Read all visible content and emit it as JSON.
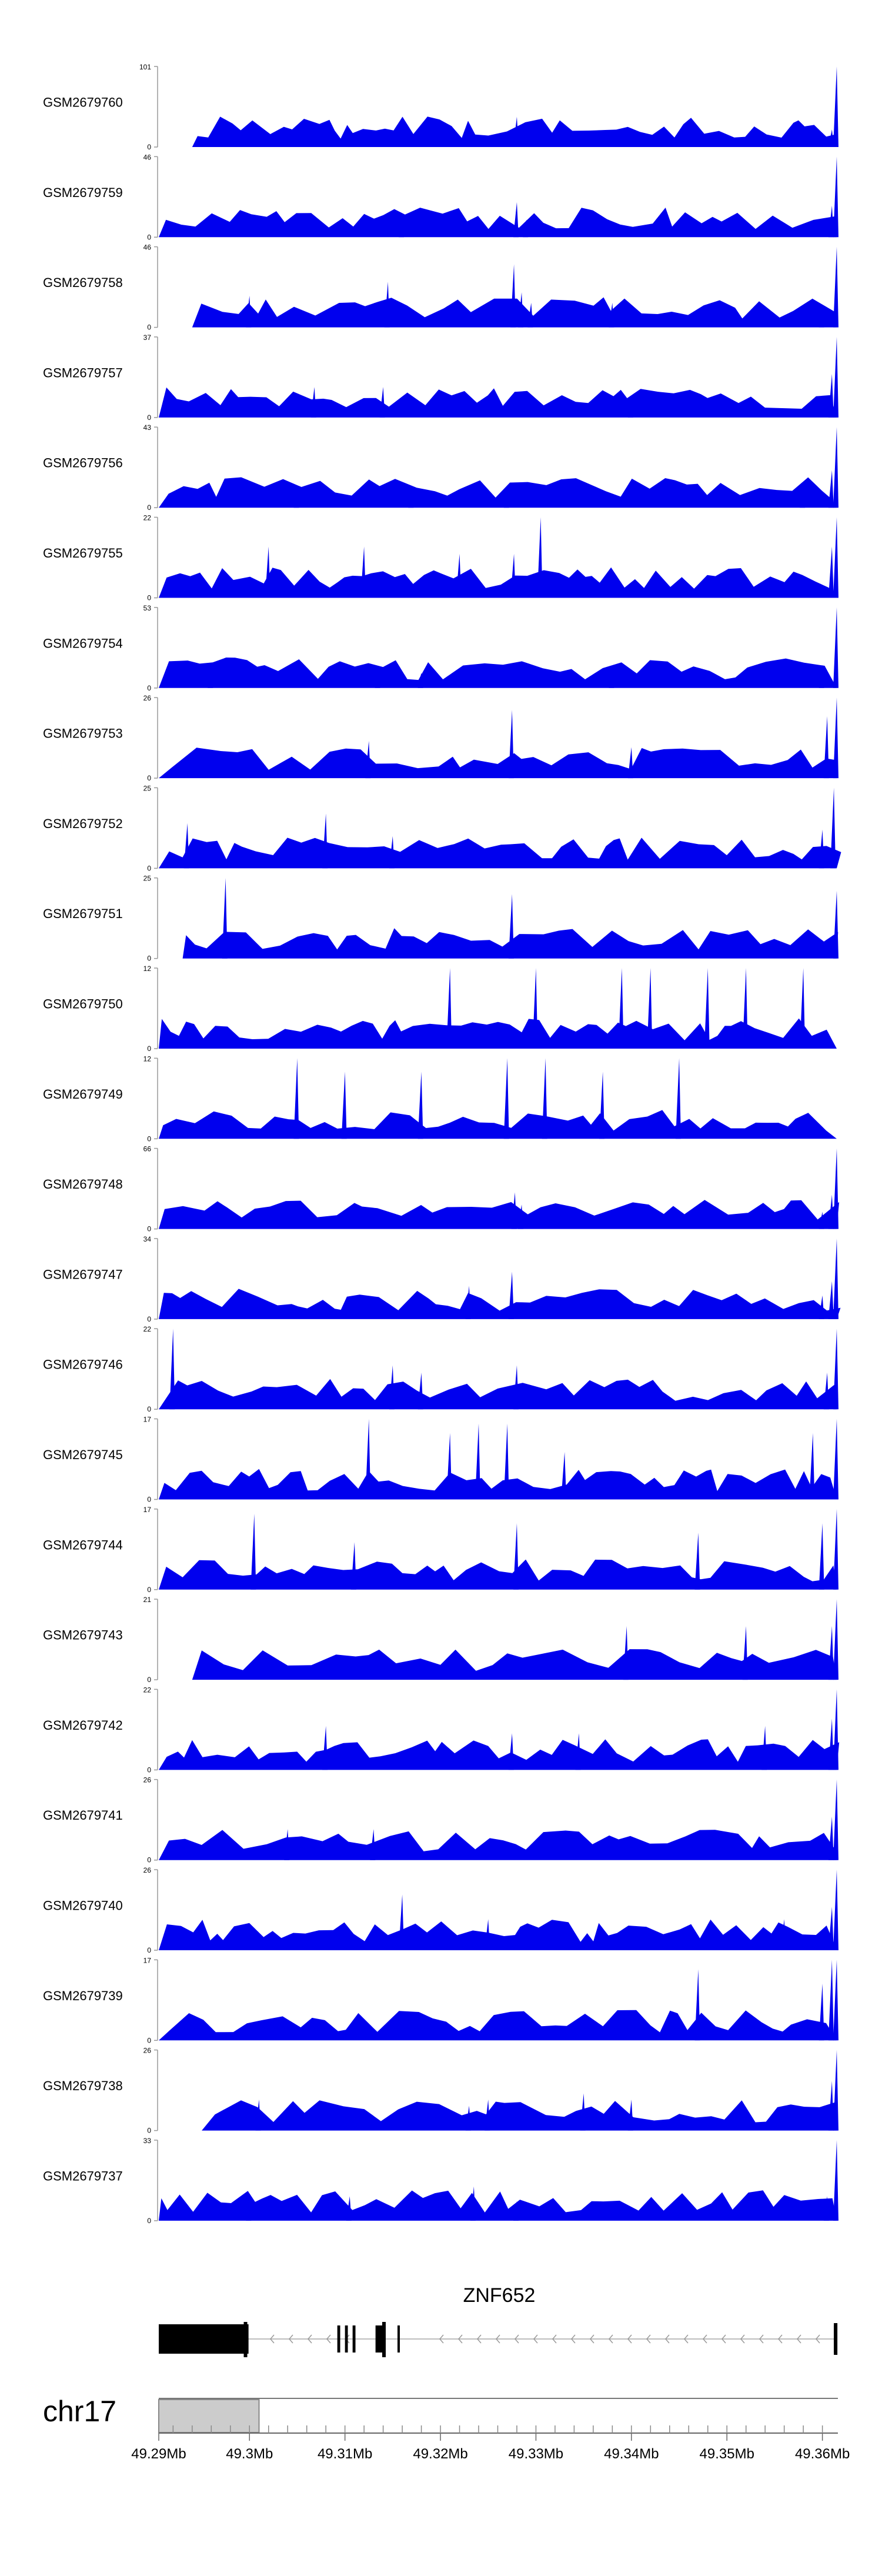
{
  "chart_data": {
    "type": "area",
    "chromosome": "chr17",
    "gene": {
      "name": "ZNF652",
      "strand": "-",
      "start": 49.2905,
      "end": 49.3615,
      "exons": [
        {
          "start": 49.2905,
          "end": 49.2999
        },
        {
          "start": 49.3092,
          "end": 49.3095
        },
        {
          "start": 49.31,
          "end": 49.3103
        },
        {
          "start": 49.3108,
          "end": 49.3111
        },
        {
          "start": 49.3132,
          "end": 49.3142
        },
        {
          "start": 49.3155,
          "end": 49.3157
        },
        {
          "start": 49.3612,
          "end": 49.3615
        }
      ]
    },
    "x_axis": {
      "range": [
        49.2905,
        49.3615
      ],
      "tick_labels": [
        {
          "value": 49.29,
          "label": "49.29Mb"
        },
        {
          "value": 49.3,
          "label": "49.3Mb"
        },
        {
          "value": 49.31,
          "label": "49.31Mb"
        },
        {
          "value": 49.32,
          "label": "49.32Mb"
        },
        {
          "value": 49.33,
          "label": "49.33Mb"
        },
        {
          "value": 49.34,
          "label": "49.34Mb"
        },
        {
          "value": 49.35,
          "label": "49.35Mb"
        },
        {
          "value": 49.36,
          "label": "49.36Mb"
        }
      ],
      "ideogram_highlight": [
        49.2905,
        49.301
      ]
    },
    "tracks": [
      {
        "name": "GSM2679760",
        "ymin": 0,
        "ymax": 101,
        "data_start": 49.294,
        "peaks": [
          [
            49.3153,
            16
          ],
          [
            49.3145,
            10
          ],
          [
            49.328,
            38
          ],
          [
            49.33,
            12
          ],
          [
            49.3615,
            101
          ],
          [
            49.361,
            22
          ],
          [
            49.36,
            14
          ]
        ]
      },
      {
        "name": "GSM2679759",
        "ymin": 0,
        "ymax": 46,
        "data_start": 49.2905,
        "peaks": [
          [
            49.328,
            20
          ],
          [
            49.329,
            10
          ],
          [
            49.361,
            18
          ],
          [
            49.3615,
            46
          ],
          [
            49.316,
            8
          ]
        ]
      },
      {
        "name": "GSM2679758",
        "ymin": 0,
        "ymax": 46,
        "data_start": 49.294,
        "peaks": [
          [
            49.3145,
            26
          ],
          [
            49.3277,
            36
          ],
          [
            49.3285,
            20
          ],
          [
            49.3295,
            14
          ],
          [
            49.3615,
            46
          ],
          [
            49.338,
            14
          ],
          [
            49.36,
            12
          ],
          [
            49.3,
            18
          ]
        ]
      },
      {
        "name": "GSM2679757",
        "ymin": 0,
        "ymax": 37,
        "data_start": 49.2905,
        "peaks": [
          [
            49.3068,
            14
          ],
          [
            49.314,
            14
          ],
          [
            49.3615,
            37
          ],
          [
            49.361,
            20
          ],
          [
            49.34,
            10
          ]
        ]
      },
      {
        "name": "GSM2679756",
        "ymin": 0,
        "ymax": 43,
        "data_start": 49.2905,
        "peaks": [
          [
            49.305,
            10
          ],
          [
            49.317,
            10
          ],
          [
            49.327,
            12
          ],
          [
            49.358,
            10
          ],
          [
            49.3615,
            43
          ],
          [
            49.361,
            20
          ]
        ]
      },
      {
        "name": "GSM2679755",
        "ymin": 0,
        "ymax": 22,
        "data_start": 49.2905,
        "peaks": [
          [
            49.302,
            14
          ],
          [
            49.312,
            14
          ],
          [
            49.322,
            12
          ],
          [
            49.3277,
            12
          ],
          [
            49.3305,
            22
          ],
          [
            49.361,
            14
          ],
          [
            49.3615,
            22
          ]
        ]
      },
      {
        "name": "GSM2679754",
        "ymin": 0,
        "ymax": 53,
        "data_start": 49.2905,
        "peaks": [
          [
            49.296,
            12
          ],
          [
            49.3135,
            14
          ],
          [
            49.318,
            10
          ],
          [
            49.338,
            14
          ],
          [
            49.3615,
            53
          ],
          [
            49.36,
            10
          ]
        ]
      },
      {
        "name": "GSM2679753",
        "ymin": 0,
        "ymax": 26,
        "data_start": 49.2905,
        "peaks": [
          [
            49.3125,
            12
          ],
          [
            49.3275,
            22
          ],
          [
            49.34,
            10
          ],
          [
            49.3605,
            20
          ],
          [
            49.3615,
            26
          ]
        ]
      },
      {
        "name": "GSM2679752",
        "ymin": 0,
        "ymax": 25,
        "data_start": 49.2905,
        "peaks": [
          [
            49.2935,
            14
          ],
          [
            49.308,
            17
          ],
          [
            49.315,
            10
          ],
          [
            49.36,
            12
          ],
          [
            49.3612,
            25
          ]
        ]
      },
      {
        "name": "GSM2679751",
        "ymin": 0,
        "ymax": 25,
        "data_start": 49.293,
        "peaks": [
          [
            49.2975,
            25
          ],
          [
            49.3275,
            20
          ],
          [
            49.3615,
            21
          ],
          [
            49.355,
            0
          ]
        ]
      },
      {
        "name": "GSM2679750",
        "ymin": 0,
        "ymax": 12,
        "data_start": 49.2905,
        "peaks": [
          [
            49.321,
            12
          ],
          [
            49.33,
            12
          ],
          [
            49.339,
            12
          ],
          [
            49.342,
            12
          ],
          [
            49.348,
            12
          ],
          [
            49.352,
            12
          ],
          [
            49.358,
            12
          ]
        ]
      },
      {
        "name": "GSM2679749",
        "ymin": 0,
        "ymax": 12,
        "data_start": 49.2905,
        "peaks": [
          [
            49.305,
            12
          ],
          [
            49.31,
            10
          ],
          [
            49.318,
            10
          ],
          [
            49.327,
            12
          ],
          [
            49.331,
            12
          ],
          [
            49.345,
            12
          ],
          [
            49.337,
            10
          ]
        ]
      },
      {
        "name": "GSM2679748",
        "ymin": 0,
        "ymax": 66,
        "data_start": 49.2905,
        "peaks": [
          [
            49.3278,
            30
          ],
          [
            49.3285,
            20
          ],
          [
            49.36,
            14
          ],
          [
            49.3615,
            66
          ],
          [
            49.361,
            28
          ]
        ]
      },
      {
        "name": "GSM2679747",
        "ymin": 0,
        "ymax": 34,
        "data_start": 49.2905,
        "peaks": [
          [
            49.323,
            14
          ],
          [
            49.3275,
            20
          ],
          [
            49.36,
            10
          ],
          [
            49.3615,
            34
          ],
          [
            49.361,
            16
          ]
        ]
      },
      {
        "name": "GSM2679746",
        "ymin": 0,
        "ymax": 22,
        "data_start": 49.2905,
        "peaks": [
          [
            49.292,
            22
          ],
          [
            49.315,
            12
          ],
          [
            49.318,
            10
          ],
          [
            49.328,
            12
          ],
          [
            49.3615,
            22
          ],
          [
            49.3605,
            10
          ]
        ]
      },
      {
        "name": "GSM2679745",
        "ymin": 0,
        "ymax": 17,
        "data_start": 49.2905,
        "peaks": [
          [
            49.3125,
            17
          ],
          [
            49.321,
            14
          ],
          [
            49.324,
            16
          ],
          [
            49.327,
            16
          ],
          [
            49.333,
            10
          ],
          [
            49.359,
            14
          ],
          [
            49.3615,
            17
          ]
        ]
      },
      {
        "name": "GSM2679744",
        "ymin": 0,
        "ymax": 17,
        "data_start": 49.2905,
        "peaks": [
          [
            49.3005,
            16
          ],
          [
            49.311,
            10
          ],
          [
            49.328,
            14
          ],
          [
            49.347,
            12
          ],
          [
            49.36,
            14
          ],
          [
            49.3615,
            17
          ]
        ]
      },
      {
        "name": "GSM2679743",
        "ymin": 0,
        "ymax": 21,
        "data_start": 49.294,
        "peaks": [
          [
            49.3395,
            14
          ],
          [
            49.352,
            14
          ],
          [
            49.3615,
            21
          ],
          [
            49.361,
            14
          ]
        ]
      },
      {
        "name": "GSM2679742",
        "ymin": 0,
        "ymax": 22,
        "data_start": 49.2905,
        "peaks": [
          [
            49.308,
            12
          ],
          [
            49.3275,
            10
          ],
          [
            49.3345,
            10
          ],
          [
            49.354,
            12
          ],
          [
            49.3615,
            22
          ],
          [
            49.361,
            14
          ]
        ]
      },
      {
        "name": "GSM2679741",
        "ymin": 0,
        "ymax": 26,
        "data_start": 49.2905,
        "peaks": [
          [
            49.304,
            10
          ],
          [
            49.313,
            10
          ],
          [
            49.361,
            14
          ],
          [
            49.3615,
            26
          ]
        ]
      },
      {
        "name": "GSM2679740",
        "ymin": 0,
        "ymax": 26,
        "data_start": 49.2905,
        "peaks": [
          [
            49.316,
            18
          ],
          [
            49.325,
            10
          ],
          [
            49.356,
            10
          ],
          [
            49.3615,
            26
          ],
          [
            49.361,
            14
          ]
        ]
      },
      {
        "name": "GSM2679739",
        "ymin": 0,
        "ymax": 17,
        "data_start": 49.2905,
        "peaks": [
          [
            49.347,
            15
          ],
          [
            49.36,
            12
          ],
          [
            49.361,
            17
          ],
          [
            49.3615,
            17
          ]
        ]
      },
      {
        "name": "GSM2679738",
        "ymin": 0,
        "ymax": 26,
        "data_start": 49.295,
        "peaks": [
          [
            49.301,
            10
          ],
          [
            49.323,
            8
          ],
          [
            49.325,
            10
          ],
          [
            49.335,
            12
          ],
          [
            49.34,
            10
          ],
          [
            49.3615,
            26
          ],
          [
            49.361,
            16
          ]
        ]
      },
      {
        "name": "GSM2679737",
        "ymin": 0,
        "ymax": 33,
        "data_start": 49.2905,
        "peaks": [
          [
            49.3,
            10
          ],
          [
            49.3105,
            10
          ],
          [
            49.3235,
            14
          ],
          [
            49.328,
            8
          ],
          [
            49.3615,
            33
          ],
          [
            49.3605,
            10
          ]
        ]
      }
    ]
  }
}
